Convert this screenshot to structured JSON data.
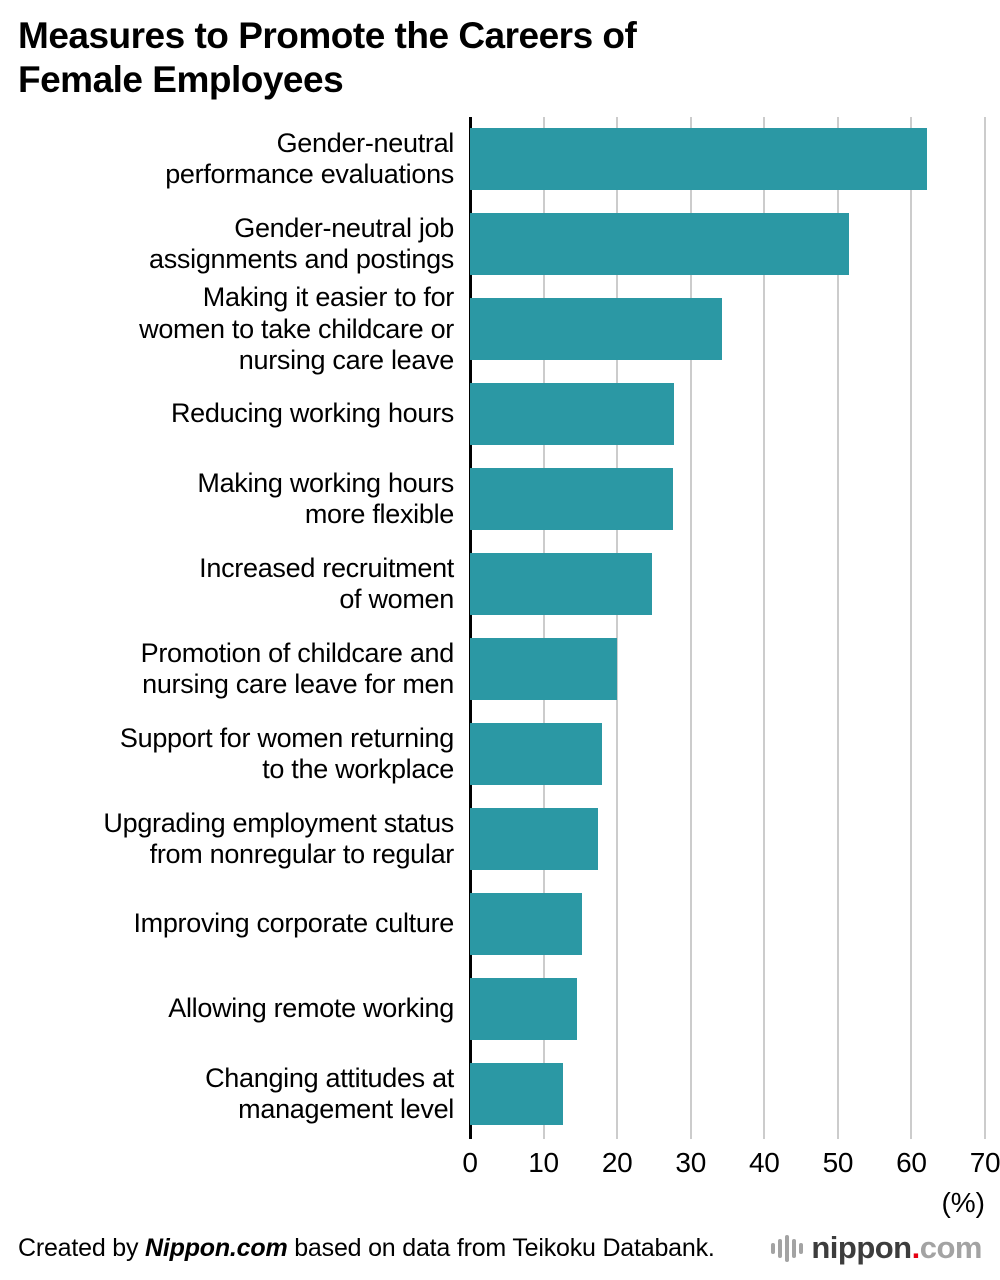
{
  "title": "Measures to Promote the Careers of\nFemale Employees",
  "chart_data": {
    "type": "bar",
    "orientation": "horizontal",
    "title": "Measures to Promote the Careers of Female Employees",
    "categories": [
      "Gender-neutral\nperformance evaluations",
      "Gender-neutral job\nassignments and postings",
      "Making it easier to for\nwomen to take childcare or\nnursing care leave",
      "Reducing working hours",
      "Making working hours\nmore flexible",
      "Increased recruitment\nof women",
      "Promotion of childcare and\nnursing care leave for men",
      "Support for women returning\nto the workplace",
      "Upgrading employment status\nfrom nonregular to regular",
      "Improving corporate culture",
      "Allowing remote working",
      "Changing attitudes at\nmanagement level"
    ],
    "values": [
      62.1,
      51.5,
      34.3,
      27.7,
      27.6,
      24.8,
      20.0,
      17.9,
      17.4,
      15.2,
      14.5,
      12.6
    ],
    "xlim": [
      0,
      70
    ],
    "x_ticks": [
      0,
      10,
      20,
      30,
      40,
      50,
      60,
      70
    ],
    "x_unit": "(%)",
    "bar_color": "#2b98a4",
    "grid": true,
    "gridline_color": "#cccccc",
    "legend_position": "none"
  },
  "footer": {
    "credit_prefix": "Created by ",
    "credit_source": "Nippon.com",
    "credit_suffix": " based on data from Teikoku Databank.",
    "logo": {
      "icon": "sound-wave-icon",
      "text_main": "nippon",
      "text_dot": ".",
      "text_suffix": "com"
    }
  }
}
